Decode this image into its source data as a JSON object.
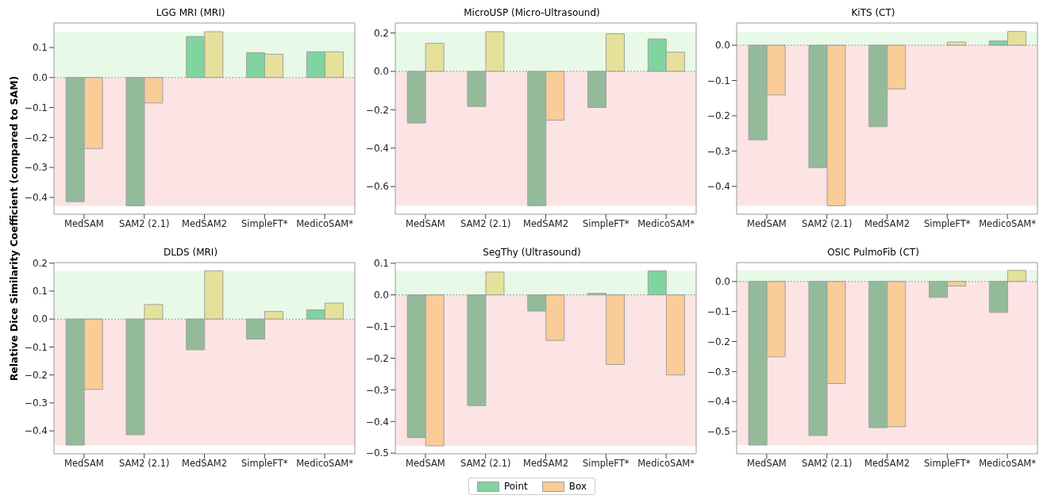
{
  "chart_data": [
    {
      "type": "bar",
      "title": "LGG MRI (MRI)",
      "ylabel": "Relative Dice Similarity Coefficient (compared to SAM)",
      "categories": [
        "MedSAM",
        "SAM2 (2.1)",
        "MedSAM2",
        "SimpleFT*",
        "MedicoSAM*"
      ],
      "series": [
        {
          "color": "#7fd4a0",
          "colors": [
            "#93bb9a",
            "#93bb9a",
            "#7fd4a0",
            "#7fd4a0",
            "#7fd4a0"
          ],
          "values": [
            -0.414,
            -0.428,
            0.137,
            0.083,
            0.086
          ]
        },
        {
          "color": "#f9cc98",
          "colors": [
            "#f9cc98",
            "#f9cc98",
            "#e6e19a",
            "#e6e19a",
            "#e6e19a"
          ],
          "values": [
            -0.237,
            -0.085,
            0.153,
            0.078,
            0.086
          ]
        }
      ],
      "ylim": [
        -0.456,
        0.182
      ],
      "yticks": [
        {
          "value": -0.4,
          "label": "−0.4"
        },
        {
          "value": -0.3,
          "label": "−0.3"
        },
        {
          "value": -0.2,
          "label": "−0.2"
        },
        {
          "value": -0.1,
          "label": "−0.1"
        },
        {
          "value": 0,
          "label": "0.0"
        },
        {
          "value": 0.1,
          "label": "0.1"
        }
      ],
      "bands": [
        {
          "axis": "y",
          "from": 0,
          "to": 0.153,
          "color": "#e8f9e8"
        },
        {
          "axis": "y",
          "from": -0.428,
          "to": 0,
          "color": "#fce4e4"
        }
      ],
      "ref_lines": [
        {
          "axis": "y",
          "value": 0,
          "color": "#999999",
          "line_style": "dotted"
        }
      ]
    },
    {
      "type": "bar",
      "title": "MicroUSP (Micro-Ultrasound)",
      "categories": [
        "MedSAM",
        "SAM2 (2.1)",
        "MedSAM2",
        "SimpleFT*",
        "MedicoSAM*"
      ],
      "series": [
        {
          "color": "#7fd4a0",
          "colors": [
            "#93bb9a",
            "#93bb9a",
            "#93bb9a",
            "#93bb9a",
            "#7fd4a0"
          ],
          "values": [
            -0.269,
            -0.183,
            -0.7,
            -0.188,
            0.169
          ]
        },
        {
          "color": "#f9cc98",
          "colors": [
            "#e6e19a",
            "#e6e19a",
            "#f9cc98",
            "#e6e19a",
            "#e6e19a"
          ],
          "values": [
            0.146,
            0.207,
            -0.254,
            0.196,
            0.1
          ]
        }
      ],
      "ylim": [
        -0.744,
        0.252
      ],
      "yticks": [
        {
          "value": -0.6,
          "label": "−0.6"
        },
        {
          "value": -0.4,
          "label": "−0.4"
        },
        {
          "value": -0.2,
          "label": "−0.2"
        },
        {
          "value": 0,
          "label": "0.0"
        },
        {
          "value": 0.2,
          "label": "0.2"
        }
      ],
      "bands": [
        {
          "axis": "y",
          "from": 0,
          "to": 0.207,
          "color": "#e8f9e8"
        },
        {
          "axis": "y",
          "from": -0.7,
          "to": 0,
          "color": "#fce4e4"
        }
      ],
      "ref_lines": [
        {
          "axis": "y",
          "value": 0,
          "color": "#999999",
          "line_style": "dotted"
        }
      ]
    },
    {
      "type": "bar",
      "title": "KiTS (CT)",
      "categories": [
        "MedSAM",
        "SAM2 (2.1)",
        "MedSAM2",
        "SimpleFT*",
        "MedicoSAM*"
      ],
      "series": [
        {
          "color": "#7fd4a0",
          "colors": [
            "#93bb9a",
            "#93bb9a",
            "#93bb9a",
            "#7fd4a0",
            "#7fd4a0"
          ],
          "values": [
            -0.268,
            -0.347,
            -0.231,
            null,
            0.012
          ]
        },
        {
          "color": "#f9cc98",
          "colors": [
            "#f9cc98",
            "#f9cc98",
            "#f9cc98",
            "#e6e19a",
            "#e6e19a"
          ],
          "values": [
            -0.141,
            -0.455,
            -0.124,
            0.009,
            0.039
          ]
        }
      ],
      "ylim": [
        -0.479,
        0.063
      ],
      "yticks": [
        {
          "value": -0.4,
          "label": "−0.4"
        },
        {
          "value": -0.3,
          "label": "−0.3"
        },
        {
          "value": -0.2,
          "label": "−0.2"
        },
        {
          "value": -0.1,
          "label": "−0.1"
        },
        {
          "value": 0,
          "label": "0.0"
        }
      ],
      "bands": [
        {
          "axis": "y",
          "from": 0,
          "to": 0.039,
          "color": "#e8f9e8"
        },
        {
          "axis": "y",
          "from": -0.455,
          "to": 0,
          "color": "#fce4e4"
        }
      ],
      "ref_lines": [
        {
          "axis": "y",
          "value": 0,
          "color": "#999999",
          "line_style": "dotted"
        }
      ]
    },
    {
      "type": "bar",
      "title": "DLDS (MRI)",
      "categories": [
        "MedSAM",
        "SAM2 (2.1)",
        "MedSAM2",
        "SimpleFT*",
        "MedicoSAM*"
      ],
      "series": [
        {
          "color": "#7fd4a0",
          "colors": [
            "#93bb9a",
            "#93bb9a",
            "#93bb9a",
            "#93bb9a",
            "#7fd4a0"
          ],
          "values": [
            -0.451,
            -0.414,
            -0.11,
            -0.072,
            0.033
          ]
        },
        {
          "color": "#f9cc98",
          "colors": [
            "#f9cc98",
            "#e6e19a",
            "#e6e19a",
            "#e6e19a",
            "#e6e19a"
          ],
          "values": [
            -0.252,
            0.052,
            0.173,
            0.027,
            0.057
          ]
        }
      ],
      "ylim": [
        -0.482,
        0.202
      ],
      "yticks": [
        {
          "value": -0.4,
          "label": "−0.4"
        },
        {
          "value": -0.3,
          "label": "−0.3"
        },
        {
          "value": -0.2,
          "label": "−0.2"
        },
        {
          "value": -0.1,
          "label": "−0.1"
        },
        {
          "value": 0,
          "label": "0.0"
        },
        {
          "value": 0.1,
          "label": "0.1"
        },
        {
          "value": 0.2,
          "label": "0.2"
        }
      ],
      "bands": [
        {
          "axis": "y",
          "from": 0,
          "to": 0.173,
          "color": "#e8f9e8"
        },
        {
          "axis": "y",
          "from": -0.451,
          "to": 0,
          "color": "#fce4e4"
        }
      ],
      "ref_lines": [
        {
          "axis": "y",
          "value": 0,
          "color": "#999999",
          "line_style": "dotted"
        }
      ]
    },
    {
      "type": "bar",
      "title": "SegThy (Ultrasound)",
      "categories": [
        "MedSAM",
        "SAM2 (2.1)",
        "MedSAM2",
        "SimpleFT*",
        "MedicoSAM*"
      ],
      "legend": "bottom",
      "series": [
        {
          "name": "Point",
          "color": "#7fd4a0",
          "colors": [
            "#93bb9a",
            "#93bb9a",
            "#93bb9a",
            "#7fd4a0",
            "#7fd4a0"
          ],
          "values": [
            -0.451,
            -0.35,
            -0.051,
            0.005,
            0.076
          ]
        },
        {
          "name": "Box",
          "color": "#f9cc98",
          "colors": [
            "#f9cc98",
            "#e6e19a",
            "#f9cc98",
            "#f9cc98",
            "#f9cc98"
          ],
          "values": [
            -0.477,
            0.072,
            -0.144,
            -0.22,
            -0.253
          ]
        }
      ],
      "ylim": [
        -0.502,
        0.102
      ],
      "yticks": [
        {
          "value": -0.5,
          "label": "−0.5"
        },
        {
          "value": -0.4,
          "label": "−0.4"
        },
        {
          "value": -0.3,
          "label": "−0.3"
        },
        {
          "value": -0.2,
          "label": "−0.2"
        },
        {
          "value": -0.1,
          "label": "−0.1"
        },
        {
          "value": 0,
          "label": "0.0"
        },
        {
          "value": 0.1,
          "label": "0.1"
        }
      ],
      "bands": [
        {
          "axis": "y",
          "from": 0,
          "to": 0.076,
          "color": "#e8f9e8"
        },
        {
          "axis": "y",
          "from": -0.477,
          "to": 0,
          "color": "#fce4e4"
        }
      ],
      "ref_lines": [
        {
          "axis": "y",
          "value": 0,
          "color": "#999999",
          "line_style": "dotted"
        }
      ]
    },
    {
      "type": "bar",
      "title": "OSIC PulmoFib (CT)",
      "categories": [
        "MedSAM",
        "SAM2 (2.1)",
        "MedSAM2",
        "SimpleFT*",
        "MedicoSAM*"
      ],
      "series": [
        {
          "color": "#7fd4a0",
          "colors": [
            "#93bb9a",
            "#93bb9a",
            "#93bb9a",
            "#93bb9a",
            "#93bb9a"
          ],
          "values": [
            -0.545,
            -0.513,
            -0.487,
            -0.053,
            -0.103
          ]
        },
        {
          "color": "#f9cc98",
          "colors": [
            "#f9cc98",
            "#f9cc98",
            "#f9cc98",
            "#f9cc98",
            "#e6e19a"
          ],
          "values": [
            -0.251,
            -0.34,
            -0.484,
            -0.015,
            0.037
          ]
        }
      ],
      "ylim": [
        -0.574,
        0.063
      ],
      "yticks": [
        {
          "value": -0.5,
          "label": "−0.5"
        },
        {
          "value": -0.4,
          "label": "−0.4"
        },
        {
          "value": -0.3,
          "label": "−0.3"
        },
        {
          "value": -0.2,
          "label": "−0.2"
        },
        {
          "value": -0.1,
          "label": "−0.1"
        },
        {
          "value": 0,
          "label": "0.0"
        }
      ],
      "bands": [
        {
          "axis": "y",
          "from": 0,
          "to": 0.037,
          "color": "#e8f9e8"
        },
        {
          "axis": "y",
          "from": -0.545,
          "to": 0,
          "color": "#fce4e4"
        }
      ],
      "ref_lines": [
        {
          "axis": "y",
          "value": 0,
          "color": "#999999",
          "line_style": "dotted"
        }
      ]
    }
  ]
}
